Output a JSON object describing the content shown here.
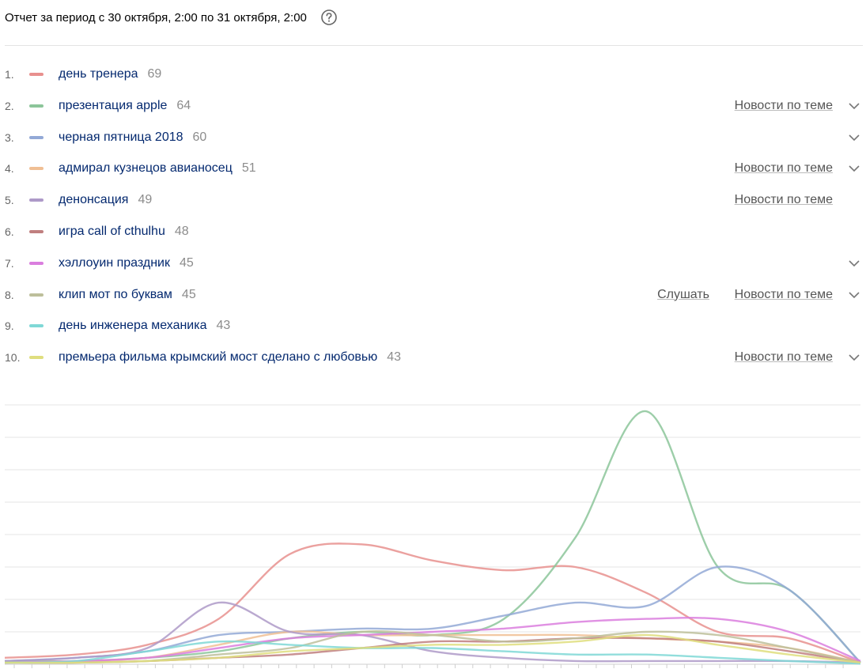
{
  "header": {
    "title": "Отчет за период с 30 октября, 2:00 по 31 октября, 2:00",
    "help_icon": "question-circle-icon"
  },
  "actions": {
    "news_label": "Новости по теме",
    "listen_label": "Слушать"
  },
  "items": [
    {
      "rank": "1.",
      "query": "день тренера",
      "count": "69",
      "color": "#e8908e",
      "news": false,
      "listen": false,
      "expand": false
    },
    {
      "rank": "2.",
      "query": "презентация apple",
      "count": "64",
      "color": "#8cc59a",
      "news": true,
      "listen": false,
      "expand": true
    },
    {
      "rank": "3.",
      "query": "черная пятница 2018",
      "count": "60",
      "color": "#93a9d6",
      "news": false,
      "listen": false,
      "expand": true
    },
    {
      "rank": "4.",
      "query": "адмирал кузнецов авианосец",
      "count": "51",
      "color": "#f0bf94",
      "news": true,
      "listen": false,
      "expand": true
    },
    {
      "rank": "5.",
      "query": "денонсация",
      "count": "49",
      "color": "#ae9ac8",
      "news": true,
      "listen": false,
      "expand": false
    },
    {
      "rank": "6.",
      "query": "игра call of cthulhu",
      "count": "48",
      "color": "#c07f7f",
      "news": false,
      "listen": false,
      "expand": false
    },
    {
      "rank": "7.",
      "query": "хэллоуин праздник",
      "count": "45",
      "color": "#da7ede",
      "news": false,
      "listen": false,
      "expand": true
    },
    {
      "rank": "8.",
      "query": "клип мот по буквам",
      "count": "45",
      "color": "#bdbf9b",
      "news": true,
      "listen": true,
      "expand": true
    },
    {
      "rank": "9.",
      "query": "день инженера механика",
      "count": "43",
      "color": "#7fd8d6",
      "news": false,
      "listen": false,
      "expand": false
    },
    {
      "rank": "10.",
      "query": "премьера фильма крымский мост сделано с любовью",
      "count": "43",
      "color": "#dfde7e",
      "news": true,
      "listen": false,
      "expand": true
    }
  ],
  "chart_data": {
    "type": "line",
    "title": "",
    "xlabel": "",
    "ylabel": "",
    "ylim": [
      0,
      8
    ],
    "grid": true,
    "x": [
      0,
      2,
      4,
      6,
      8,
      10,
      12,
      14,
      16,
      18,
      20,
      22,
      24
    ],
    "series": [
      {
        "color": "#e8908e",
        "values": [
          0.2,
          0.3,
          0.6,
          1.4,
          3.4,
          3.7,
          3.2,
          2.9,
          3.0,
          2.2,
          1.0,
          0.8,
          0.05
        ]
      },
      {
        "color": "#8cc59a",
        "values": [
          0.1,
          0.1,
          0.2,
          0.4,
          0.8,
          1.0,
          0.9,
          1.4,
          3.9,
          7.8,
          3.0,
          2.3,
          0.05
        ]
      },
      {
        "color": "#93a9d6",
        "values": [
          0.1,
          0.2,
          0.4,
          0.9,
          1.0,
          1.1,
          1.1,
          1.5,
          1.9,
          1.8,
          3.0,
          2.3,
          0.05
        ]
      },
      {
        "color": "#f0bf94",
        "values": [
          0.05,
          0.1,
          0.2,
          0.6,
          1.0,
          0.9,
          0.9,
          0.9,
          0.9,
          0.8,
          0.7,
          0.5,
          0.05
        ]
      },
      {
        "color": "#ae9ac8",
        "values": [
          0.1,
          0.2,
          0.5,
          1.9,
          1.0,
          0.9,
          0.4,
          0.2,
          0.1,
          0.1,
          0.1,
          0.1,
          0.05
        ]
      },
      {
        "color": "#c07f7f",
        "values": [
          0.05,
          0.05,
          0.1,
          0.2,
          0.3,
          0.5,
          0.7,
          0.7,
          0.8,
          0.8,
          0.7,
          0.4,
          0.05
        ]
      },
      {
        "color": "#da7ede",
        "values": [
          0.05,
          0.1,
          0.2,
          0.5,
          0.8,
          0.9,
          1.0,
          1.1,
          1.3,
          1.4,
          1.4,
          1.0,
          0.1
        ]
      },
      {
        "color": "#bdbf9b",
        "values": [
          0.05,
          0.05,
          0.1,
          0.3,
          0.5,
          1.0,
          0.9,
          0.7,
          0.8,
          1.0,
          0.9,
          0.5,
          0.05
        ]
      },
      {
        "color": "#7fd8d6",
        "values": [
          0.05,
          0.1,
          0.4,
          0.7,
          0.6,
          0.5,
          0.5,
          0.4,
          0.3,
          0.3,
          0.2,
          0.1,
          0.02
        ]
      },
      {
        "color": "#dfde7e",
        "values": [
          0.05,
          0.05,
          0.1,
          0.2,
          0.4,
          0.5,
          0.6,
          0.6,
          0.7,
          0.9,
          0.6,
          0.3,
          0.05
        ]
      }
    ]
  }
}
